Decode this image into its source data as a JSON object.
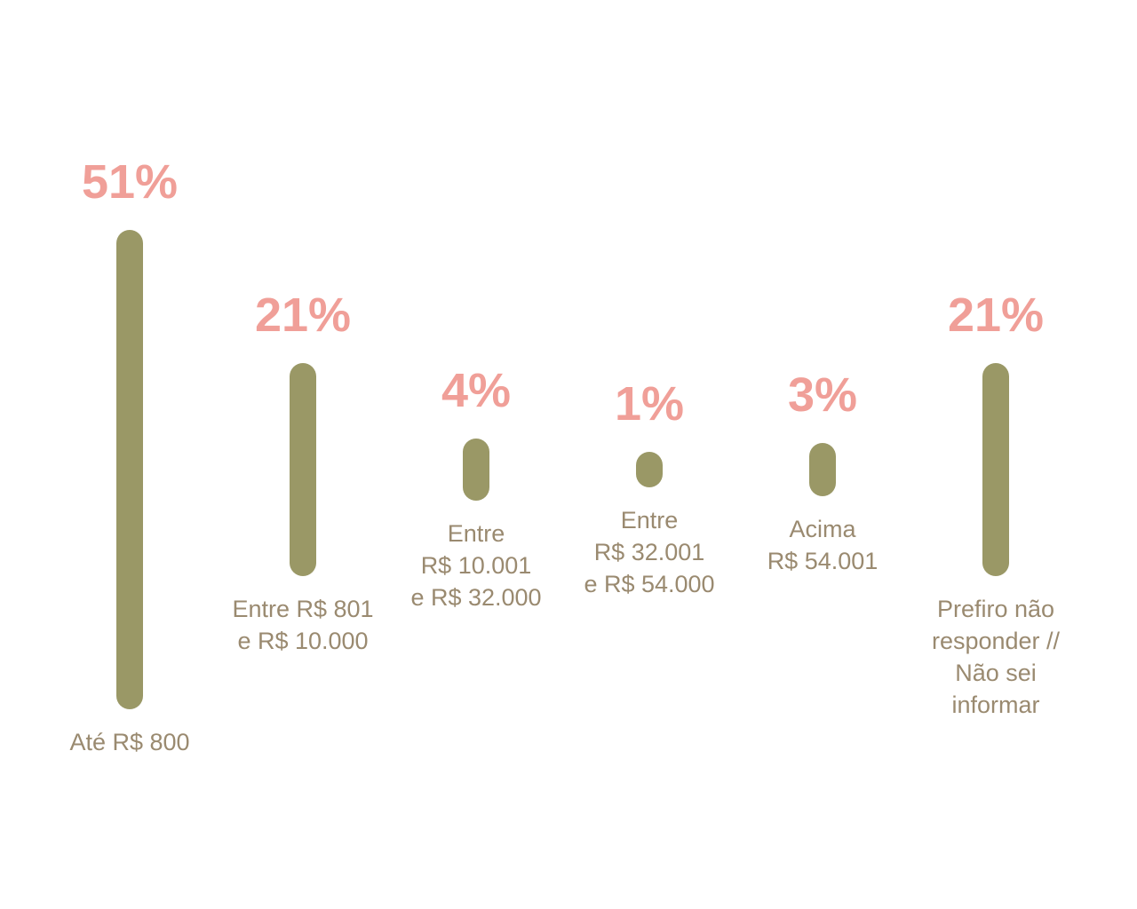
{
  "chart_data": {
    "type": "bar",
    "categories": [
      "Até R$ 800",
      "Entre R$ 801\ne R$ 10.000",
      "Entre\nR$ 10.001\ne R$ 32.000",
      "Entre\nR$ 32.001\ne R$ 54.000",
      "Acima\nR$ 54.001",
      "Prefiro não\nresponder //\nNão sei\ninformar"
    ],
    "values": [
      51,
      21,
      4,
      1,
      3,
      21
    ],
    "value_labels": [
      "51%",
      "21%",
      "4%",
      "1%",
      "3%",
      "21%"
    ],
    "color": "#9a9866"
  }
}
